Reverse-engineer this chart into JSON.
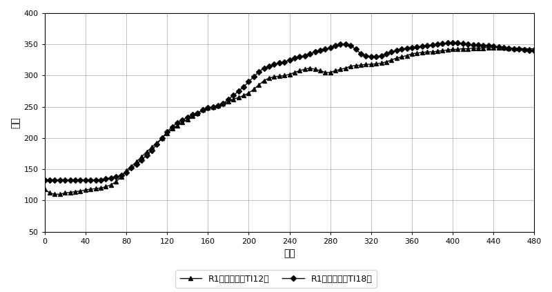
{
  "title": "",
  "xlabel": "时间",
  "ylabel": "温度",
  "xlim": [
    0,
    480
  ],
  "ylim": [
    50,
    400
  ],
  "xticks": [
    0,
    40,
    80,
    120,
    160,
    200,
    240,
    280,
    320,
    360,
    400,
    440,
    480
  ],
  "yticks": [
    50,
    100,
    150,
    200,
    250,
    300,
    350,
    400
  ],
  "legend1": "R1入口温度（TI12）",
  "legend2": "R1出口温度（TI18）",
  "ti12_x": [
    0,
    5,
    10,
    15,
    20,
    25,
    30,
    35,
    40,
    45,
    50,
    55,
    60,
    65,
    70,
    75,
    80,
    85,
    90,
    95,
    100,
    105,
    110,
    115,
    120,
    125,
    130,
    135,
    140,
    145,
    150,
    155,
    160,
    165,
    170,
    175,
    180,
    185,
    190,
    195,
    200,
    205,
    210,
    215,
    220,
    225,
    230,
    235,
    240,
    245,
    250,
    255,
    260,
    265,
    270,
    275,
    280,
    285,
    290,
    295,
    300,
    305,
    310,
    315,
    320,
    325,
    330,
    335,
    340,
    345,
    350,
    355,
    360,
    365,
    370,
    375,
    380,
    385,
    390,
    395,
    400,
    405,
    410,
    415,
    420,
    425,
    430,
    435,
    440,
    445,
    450,
    455,
    460,
    465,
    470,
    475,
    480
  ],
  "ti12_y": [
    118,
    112,
    110,
    110,
    112,
    113,
    114,
    115,
    117,
    118,
    119,
    120,
    122,
    125,
    130,
    138,
    148,
    155,
    162,
    170,
    178,
    185,
    192,
    200,
    208,
    215,
    220,
    225,
    230,
    235,
    240,
    245,
    248,
    250,
    252,
    255,
    258,
    262,
    265,
    268,
    272,
    278,
    285,
    292,
    296,
    298,
    299,
    300,
    302,
    305,
    308,
    310,
    312,
    310,
    308,
    305,
    305,
    308,
    310,
    312,
    315,
    316,
    317,
    318,
    318,
    319,
    320,
    322,
    325,
    328,
    330,
    332,
    335,
    336,
    337,
    338,
    338,
    339,
    340,
    341,
    342,
    342,
    343,
    343,
    344,
    344,
    344,
    345,
    345,
    345,
    345,
    344,
    344,
    344,
    343,
    343,
    343
  ],
  "ti18_x": [
    0,
    5,
    10,
    15,
    20,
    25,
    30,
    35,
    40,
    45,
    50,
    55,
    60,
    65,
    70,
    75,
    80,
    85,
    90,
    95,
    100,
    105,
    110,
    115,
    120,
    125,
    130,
    135,
    140,
    145,
    150,
    155,
    160,
    165,
    170,
    175,
    180,
    185,
    190,
    195,
    200,
    205,
    210,
    215,
    220,
    225,
    230,
    235,
    240,
    245,
    250,
    255,
    260,
    265,
    270,
    275,
    280,
    285,
    290,
    295,
    300,
    305,
    310,
    315,
    320,
    325,
    330,
    335,
    340,
    345,
    350,
    355,
    360,
    365,
    370,
    375,
    380,
    385,
    390,
    395,
    400,
    405,
    410,
    415,
    420,
    425,
    430,
    435,
    440,
    445,
    450,
    455,
    460,
    465,
    470,
    475,
    480
  ],
  "ti18_y": [
    133,
    133,
    133,
    133,
    133,
    133,
    133,
    133,
    133,
    133,
    133,
    133,
    135,
    136,
    138,
    140,
    145,
    152,
    158,
    165,
    172,
    180,
    190,
    200,
    210,
    218,
    224,
    229,
    233,
    237,
    240,
    245,
    248,
    250,
    252,
    255,
    262,
    268,
    275,
    282,
    290,
    298,
    306,
    312,
    315,
    318,
    320,
    322,
    325,
    328,
    330,
    332,
    335,
    338,
    340,
    342,
    345,
    348,
    350,
    350,
    348,
    342,
    335,
    332,
    330,
    330,
    332,
    335,
    338,
    340,
    342,
    344,
    345,
    346,
    347,
    348,
    349,
    350,
    351,
    352,
    353,
    352,
    351,
    350,
    349,
    349,
    348,
    348,
    347,
    346,
    345,
    344,
    343,
    342,
    341,
    340,
    340
  ],
  "bg_color": "#ffffff",
  "line_color": "#000000",
  "grid_color": "#aaaaaa"
}
